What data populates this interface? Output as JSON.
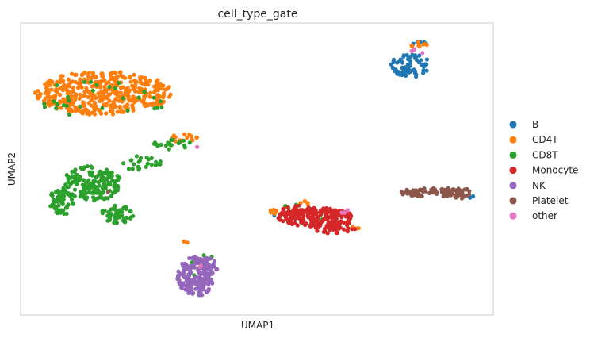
{
  "chart_data": {
    "type": "scatter",
    "title": "cell_type_gate",
    "xlabel": "UMAP1",
    "ylabel": "UMAP2",
    "xlim": [
      0,
      100
    ],
    "ylim": [
      0,
      100
    ],
    "grid": false,
    "ticks": false,
    "legend_position": "right-outside",
    "series": [
      {
        "name": "B",
        "color": "#1f77b4",
        "clusters": [
          {
            "cx": 82.5,
            "cy": 85.5,
            "rx": 4.2,
            "ry": 4.0,
            "n": 70
          },
          {
            "cx": 84.5,
            "cy": 93.0,
            "rx": 1.6,
            "ry": 0.8,
            "n": 5
          },
          {
            "cx": 54.5,
            "cy": 34.0,
            "rx": 1.2,
            "ry": 1.0,
            "n": 2
          },
          {
            "cx": 38.5,
            "cy": 17.0,
            "rx": 0.8,
            "ry": 0.8,
            "n": 2
          },
          {
            "cx": 95.5,
            "cy": 40.5,
            "rx": 0.8,
            "ry": 0.8,
            "n": 2
          }
        ]
      },
      {
        "name": "CD4T",
        "color": "#ff7f0e",
        "clusters": [
          {
            "cx": 17.5,
            "cy": 76.0,
            "rx": 14.5,
            "ry": 7.5,
            "n": 430
          },
          {
            "cx": 34.5,
            "cy": 60.5,
            "rx": 3.0,
            "ry": 1.5,
            "n": 14
          },
          {
            "cx": 84.5,
            "cy": 92.5,
            "rx": 2.0,
            "ry": 1.0,
            "n": 8
          },
          {
            "cx": 54.0,
            "cy": 35.0,
            "rx": 2.2,
            "ry": 1.2,
            "n": 8
          },
          {
            "cx": 71.0,
            "cy": 30.0,
            "rx": 1.0,
            "ry": 0.6,
            "n": 3
          },
          {
            "cx": 60.5,
            "cy": 38.0,
            "rx": 1.6,
            "ry": 1.2,
            "n": 4
          },
          {
            "cx": 35.0,
            "cy": 25.5,
            "rx": 0.8,
            "ry": 0.8,
            "n": 2
          }
        ]
      },
      {
        "name": "CD8T",
        "color": "#2ca02c",
        "clusters": [
          {
            "cx": 15.0,
            "cy": 45.0,
            "rx": 6.5,
            "ry": 6.0,
            "n": 170
          },
          {
            "cx": 8.5,
            "cy": 38.5,
            "rx": 2.8,
            "ry": 4.5,
            "n": 60
          },
          {
            "cx": 20.5,
            "cy": 34.5,
            "rx": 3.5,
            "ry": 3.0,
            "n": 55
          },
          {
            "cx": 25.5,
            "cy": 52.0,
            "rx": 4.5,
            "ry": 2.5,
            "n": 25
          },
          {
            "cx": 32.0,
            "cy": 58.5,
            "rx": 4.0,
            "ry": 1.8,
            "n": 22
          },
          {
            "cx": 17.5,
            "cy": 74.0,
            "rx": 14.0,
            "ry": 7.0,
            "n": 30
          },
          {
            "cx": 38.5,
            "cy": 17.0,
            "rx": 3.0,
            "ry": 5.0,
            "n": 12
          },
          {
            "cx": 59.0,
            "cy": 34.5,
            "rx": 6.5,
            "ry": 3.5,
            "n": 12
          }
        ]
      },
      {
        "name": "Monocyte",
        "color": "#d62728",
        "clusters": [
          {
            "cx": 62.5,
            "cy": 33.5,
            "rx": 8.0,
            "ry": 3.2,
            "n": 180
          },
          {
            "cx": 66.0,
            "cy": 30.0,
            "rx": 5.0,
            "ry": 2.2,
            "n": 40
          },
          {
            "cx": 58.5,
            "cy": 35.5,
            "rx": 3.5,
            "ry": 2.0,
            "n": 30
          }
        ]
      },
      {
        "name": "NK",
        "color": "#9467bd",
        "clusters": [
          {
            "cx": 37.0,
            "cy": 13.0,
            "rx": 3.8,
            "ry": 7.0,
            "n": 170
          },
          {
            "cx": 39.5,
            "cy": 16.5,
            "rx": 2.2,
            "ry": 3.0,
            "n": 30
          }
        ]
      },
      {
        "name": "Platelet",
        "color": "#8c564b",
        "clusters": [
          {
            "cx": 87.5,
            "cy": 42.0,
            "rx": 7.5,
            "ry": 1.5,
            "n": 70
          },
          {
            "cx": 93.0,
            "cy": 41.5,
            "rx": 2.8,
            "ry": 2.0,
            "n": 30
          },
          {
            "cx": 19.0,
            "cy": 42.0,
            "rx": 0.6,
            "ry": 0.6,
            "n": 1
          }
        ]
      },
      {
        "name": "other",
        "color": "#e377c2",
        "clusters": [
          {
            "cx": 38.0,
            "cy": 58.0,
            "rx": 0.8,
            "ry": 0.8,
            "n": 1
          },
          {
            "cx": 68.0,
            "cy": 36.0,
            "rx": 2.0,
            "ry": 1.5,
            "n": 3
          },
          {
            "cx": 84.0,
            "cy": 90.0,
            "rx": 1.6,
            "ry": 1.2,
            "n": 3
          },
          {
            "cx": 38.0,
            "cy": 17.5,
            "rx": 1.0,
            "ry": 1.0,
            "n": 2
          }
        ]
      }
    ]
  }
}
